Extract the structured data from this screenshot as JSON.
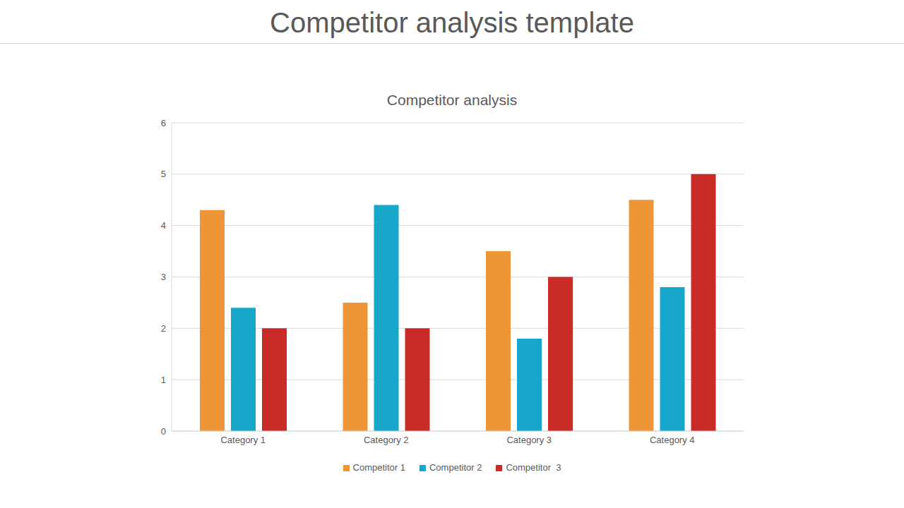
{
  "header": {
    "title": "Competitor analysis template"
  },
  "chart_data": {
    "type": "bar",
    "title": "Competitor analysis",
    "categories": [
      "Category 1",
      "Category 2",
      "Category 3",
      "Category 4"
    ],
    "series": [
      {
        "name": "Competitor 1",
        "color": "#ed9537",
        "values": [
          4.3,
          2.5,
          3.5,
          4.5
        ]
      },
      {
        "name": "Competitor 2",
        "color": "#17a7cb",
        "values": [
          2.4,
          4.4,
          1.8,
          2.8
        ]
      },
      {
        "name": "Competitor  3",
        "color": "#c92b27",
        "values": [
          2,
          2,
          3,
          5
        ]
      }
    ],
    "ylim": [
      0,
      6
    ],
    "yticks": [
      0,
      1,
      2,
      3,
      4,
      5,
      6
    ],
    "grid": true,
    "legend": "bottom"
  }
}
